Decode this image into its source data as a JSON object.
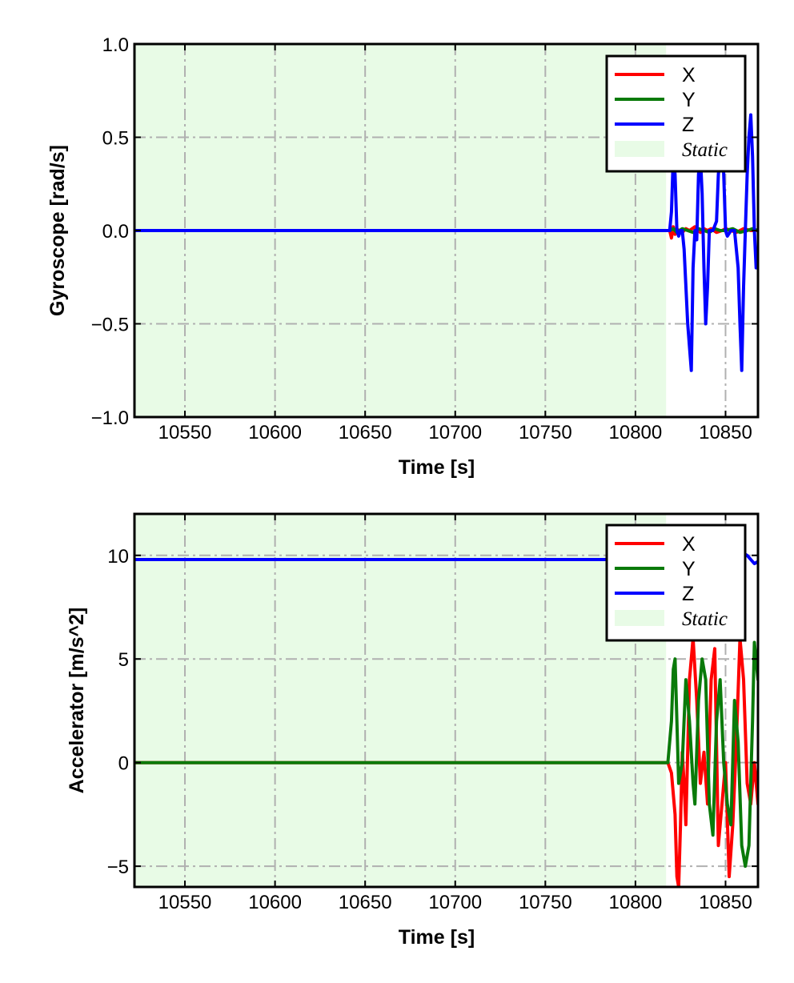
{
  "colors": {
    "x": "#ff0000",
    "y": "#0a7a0a",
    "z": "#0000ff",
    "static_fill": "#e8fbe6",
    "grid": "#b0b0b0"
  },
  "chart_data": [
    {
      "type": "line",
      "xlabel": "Time [s]",
      "ylabel": "Gyroscope [rad/s]",
      "xlim": [
        10522,
        10868
      ],
      "ylim": [
        -1.0,
        1.0
      ],
      "xticks": [
        10550,
        10600,
        10650,
        10700,
        10750,
        10800,
        10850
      ],
      "xtick_labels": [
        "10550",
        "10600",
        "10650",
        "10700",
        "10750",
        "10800",
        "10850"
      ],
      "yticks": [
        1.0,
        0.5,
        0.0,
        -0.5,
        -1.0
      ],
      "ytick_labels": [
        "1.0",
        "0.5",
        "0.0",
        "−0.5",
        "−1.0"
      ],
      "grid": true,
      "legend_position": "top-right",
      "static_region": {
        "label": "Static",
        "x_range": [
          10522,
          10817
        ]
      },
      "series": [
        {
          "name": "X",
          "x": [
            10522,
            10819,
            10820,
            10821,
            10822,
            10823,
            10824,
            10826,
            10828,
            10830,
            10833,
            10836,
            10838,
            10840,
            10842,
            10845,
            10848,
            10850,
            10853,
            10856,
            10860,
            10864,
            10868
          ],
          "y": [
            0.0,
            0.0,
            -0.04,
            0.02,
            -0.02,
            0.01,
            0.0,
            -0.01,
            0.01,
            0.0,
            0.02,
            -0.01,
            0.01,
            0.0,
            0.01,
            -0.01,
            0.0,
            0.01,
            0.0,
            -0.01,
            0.01,
            0.0,
            0.0
          ]
        },
        {
          "name": "Y",
          "x": [
            10522,
            10819,
            10821,
            10823,
            10826,
            10829,
            10832,
            10835,
            10838,
            10841,
            10844,
            10847,
            10850,
            10854,
            10858,
            10862,
            10865,
            10868
          ],
          "y": [
            0.0,
            0.0,
            0.01,
            -0.01,
            0.01,
            0.0,
            -0.01,
            0.01,
            0.0,
            -0.01,
            0.01,
            0.0,
            0.0,
            0.01,
            -0.01,
            0.0,
            0.01,
            0.0
          ],
          "y_values_note": ""
        },
        {
          "name": "Z",
          "x": [
            10522,
            10819,
            10820,
            10821,
            10822,
            10823,
            10824,
            10825,
            10826,
            10827,
            10829,
            10831,
            10832,
            10833,
            10834,
            10835,
            10836,
            10837,
            10838,
            10839,
            10840,
            10841,
            10843,
            10845,
            10846,
            10848,
            10849,
            10850,
            10851,
            10853,
            10855,
            10857,
            10858,
            10859,
            10860,
            10861,
            10862,
            10863,
            10864,
            10865,
            10866,
            10867,
            10868
          ],
          "y": [
            0.0,
            0.0,
            0.1,
            0.4,
            0.3,
            0.0,
            -0.03,
            0.0,
            0.0,
            -0.1,
            -0.5,
            -0.75,
            -0.2,
            0.0,
            -0.05,
            0.3,
            0.4,
            0.2,
            -0.2,
            -0.5,
            -0.3,
            0.0,
            0.0,
            0.05,
            0.3,
            0.5,
            0.3,
            0.0,
            -0.03,
            0.0,
            0.0,
            -0.2,
            -0.5,
            -0.75,
            -0.3,
            0.0,
            0.3,
            0.5,
            0.62,
            0.4,
            0.0,
            -0.2,
            -0.2
          ]
        }
      ]
    },
    {
      "type": "line",
      "xlabel": "Time [s]",
      "ylabel": "Accelerator [m/s^2]",
      "xlim": [
        10522,
        10868
      ],
      "ylim": [
        -6.0,
        12.0
      ],
      "xticks": [
        10550,
        10600,
        10650,
        10700,
        10750,
        10800,
        10850
      ],
      "xtick_labels": [
        "10550",
        "10600",
        "10650",
        "10700",
        "10750",
        "10800",
        "10850"
      ],
      "yticks": [
        10,
        5,
        0,
        -5
      ],
      "ytick_labels": [
        "10",
        "5",
        "0",
        "−5"
      ],
      "grid": true,
      "legend_position": "top-right",
      "static_region": {
        "label": "Static",
        "x_range": [
          10522,
          10817
        ]
      },
      "series": [
        {
          "name": "X",
          "x": [
            10522,
            10818,
            10820,
            10822,
            10823,
            10824,
            10825,
            10826,
            10827,
            10828,
            10830,
            10832,
            10834,
            10836,
            10838,
            10840,
            10842,
            10844,
            10846,
            10848,
            10850,
            10852,
            10854,
            10856,
            10858,
            10860,
            10862,
            10864,
            10866,
            10868
          ],
          "y": [
            0.0,
            0.0,
            -0.5,
            -2.5,
            -5.5,
            -6.0,
            -3.0,
            0.5,
            -1.0,
            -3.0,
            4.0,
            6.0,
            3.0,
            -1.0,
            0.5,
            -2.0,
            4.0,
            5.5,
            -4.0,
            -2.0,
            0.0,
            -5.5,
            -3.0,
            1.0,
            6.0,
            4.0,
            -1.0,
            -2.0,
            0.0,
            -2.0
          ]
        },
        {
          "name": "Y",
          "x": [
            10522,
            10818,
            10820,
            10821,
            10822,
            10823,
            10824,
            10826,
            10828,
            10830,
            10832,
            10833,
            10835,
            10837,
            10839,
            10841,
            10843,
            10845,
            10847,
            10849,
            10851,
            10853,
            10855,
            10857,
            10859,
            10861,
            10863,
            10865,
            10866,
            10868
          ],
          "y": [
            0.0,
            0.0,
            2.0,
            4.5,
            5.0,
            2.0,
            -1.0,
            0.0,
            4.0,
            2.0,
            -1.0,
            -2.0,
            3.0,
            5.0,
            4.0,
            -2.0,
            -3.5,
            2.0,
            4.0,
            0.0,
            -2.0,
            -3.0,
            3.0,
            1.0,
            -4.0,
            -5.0,
            -4.0,
            2.0,
            5.8,
            4.0
          ]
        },
        {
          "name": "Z",
          "x": [
            10522,
            10818,
            10850,
            10852,
            10854,
            10856,
            10858,
            10860,
            10862,
            10864,
            10866,
            10868
          ],
          "y": [
            9.8,
            9.8,
            9.9,
            10.0,
            10.1,
            10.0,
            9.9,
            10.1,
            10.0,
            9.8,
            9.6,
            9.7
          ]
        }
      ]
    }
  ]
}
